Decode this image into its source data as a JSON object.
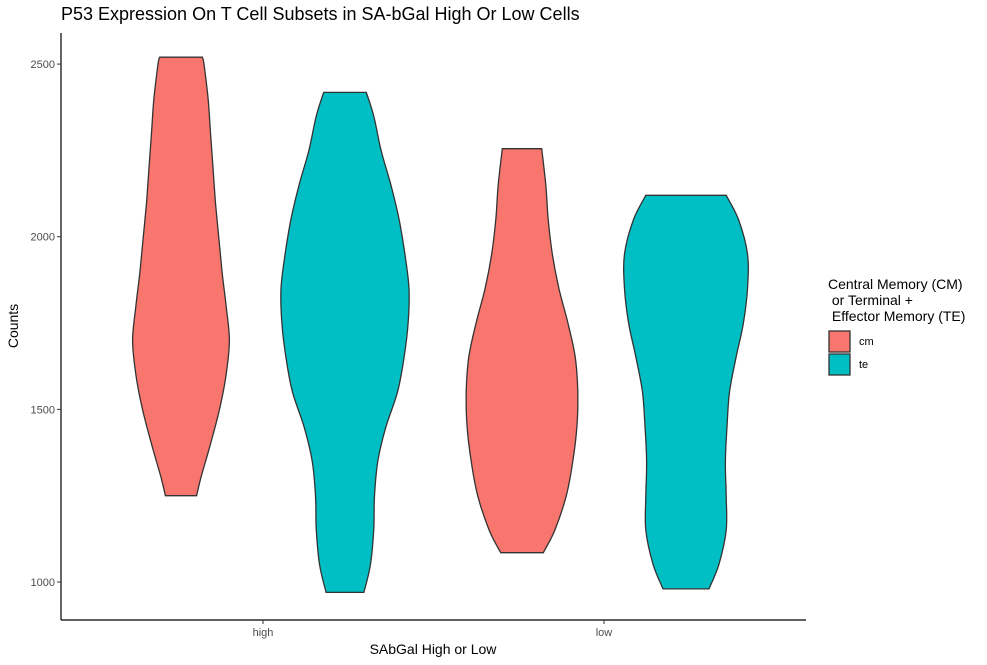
{
  "chart_data": {
    "type": "violin",
    "title": "P53 Expression On T Cell Subsets in SA-bGal High Or Low Cells",
    "xlabel": "SAbGal High or Low",
    "ylabel": "Counts",
    "categories": [
      "high",
      "low"
    ],
    "yticks": [
      1000,
      1500,
      2000,
      2500
    ],
    "ylim": [
      890,
      2590
    ],
    "grid": false,
    "legend": {
      "title_lines": [
        "Central Memory (CM)",
        " or Terminal +",
        " Effector Memory (TE)"
      ],
      "placement": "right",
      "entries": [
        {
          "label": "cm",
          "color": "#F8766D"
        },
        {
          "label": "te",
          "color": "#00BFC4"
        }
      ]
    },
    "series": [
      {
        "name": "cm",
        "color": "#F8766D",
        "violins": [
          {
            "category": "high",
            "min": 1250,
            "max": 2520,
            "profile": [
              [
                1250,
                0.19
              ],
              [
                1300,
                0.24
              ],
              [
                1400,
                0.36
              ],
              [
                1500,
                0.47
              ],
              [
                1600,
                0.55
              ],
              [
                1700,
                0.59
              ],
              [
                1800,
                0.55
              ],
              [
                1900,
                0.5
              ],
              [
                2000,
                0.46
              ],
              [
                2100,
                0.42
              ],
              [
                2200,
                0.39
              ],
              [
                2300,
                0.36
              ],
              [
                2400,
                0.33
              ],
              [
                2500,
                0.28
              ],
              [
                2520,
                0.26
              ]
            ]
          },
          {
            "category": "low",
            "min": 1085,
            "max": 2255,
            "profile": [
              [
                1085,
                0.26
              ],
              [
                1150,
                0.4
              ],
              [
                1250,
                0.54
              ],
              [
                1350,
                0.62
              ],
              [
                1450,
                0.67
              ],
              [
                1550,
                0.68
              ],
              [
                1650,
                0.65
              ],
              [
                1750,
                0.56
              ],
              [
                1850,
                0.45
              ],
              [
                1950,
                0.37
              ],
              [
                2050,
                0.32
              ],
              [
                2150,
                0.29
              ],
              [
                2255,
                0.24
              ]
            ]
          }
        ]
      },
      {
        "name": "te",
        "color": "#00BFC4",
        "violins": [
          {
            "category": "high",
            "min": 970,
            "max": 2418,
            "profile": [
              [
                970,
                0.23
              ],
              [
                1050,
                0.31
              ],
              [
                1150,
                0.35
              ],
              [
                1250,
                0.36
              ],
              [
                1350,
                0.4
              ],
              [
                1450,
                0.5
              ],
              [
                1550,
                0.64
              ],
              [
                1650,
                0.72
              ],
              [
                1750,
                0.77
              ],
              [
                1850,
                0.78
              ],
              [
                1950,
                0.73
              ],
              [
                2050,
                0.66
              ],
              [
                2150,
                0.56
              ],
              [
                2250,
                0.44
              ],
              [
                2350,
                0.35
              ],
              [
                2418,
                0.26
              ]
            ]
          },
          {
            "category": "low",
            "min": 980,
            "max": 2120,
            "profile": [
              [
                980,
                0.28
              ],
              [
                1050,
                0.4
              ],
              [
                1150,
                0.49
              ],
              [
                1250,
                0.49
              ],
              [
                1350,
                0.48
              ],
              [
                1450,
                0.5
              ],
              [
                1550,
                0.53
              ],
              [
                1650,
                0.61
              ],
              [
                1750,
                0.7
              ],
              [
                1850,
                0.75
              ],
              [
                1950,
                0.75
              ],
              [
                2050,
                0.64
              ],
              [
                2120,
                0.49
              ]
            ]
          }
        ]
      }
    ]
  }
}
